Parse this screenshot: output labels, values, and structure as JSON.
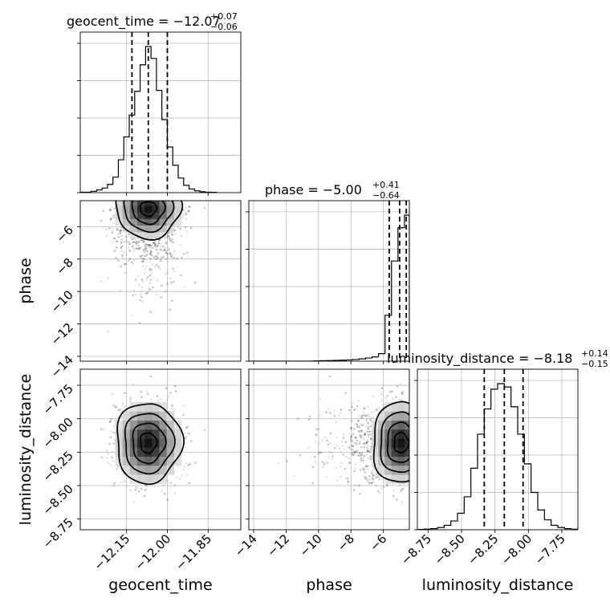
{
  "chart_data": {
    "type": "corner",
    "colors": {
      "lines": "#000000",
      "grid": "#b0b0b0",
      "points": "#bbbbbb",
      "density_dark": "#000000"
    },
    "grid": true,
    "params": [
      {
        "name": "geocent_time",
        "title_main": "geocent_time = −12.07",
        "title_plus": "+0.07",
        "title_minus": "−0.06",
        "range": [
          -12.32,
          -11.73
        ],
        "ticks": [
          -12.15,
          -12.0,
          -11.85
        ],
        "tick_labels": [
          "−12.15",
          "−12.00",
          "−11.85"
        ],
        "quantiles": [
          -12.13,
          -12.07,
          -12.0
        ],
        "hist_bins": [
          -12.32,
          -12.3,
          -12.28,
          -12.26,
          -12.24,
          -12.22,
          -12.2,
          -12.18,
          -12.16,
          -12.14,
          -12.12,
          -12.1,
          -12.08,
          -12.06,
          -12.04,
          -12.02,
          -12.0,
          -11.98,
          -11.96,
          -11.94,
          -11.92,
          -11.9,
          -11.88,
          -11.86,
          -11.84,
          -11.82
        ],
        "hist_counts": [
          0.5,
          0.5,
          1.5,
          3,
          5,
          9,
          17,
          36,
          61,
          85,
          111,
          140,
          160,
          147,
          112,
          80,
          50,
          30,
          16,
          8,
          4,
          2,
          1,
          0.5,
          0.3
        ]
      },
      {
        "name": "phase",
        "title_main": "phase = −5.00",
        "title_plus": "+0.41",
        "title_minus": "−0.64",
        "range": [
          -14.3,
          -4.4
        ],
        "ticks": [
          -14,
          -12,
          -10,
          -8,
          -6
        ],
        "tick_labels": [
          "−14",
          "−12",
          "−10",
          "−8",
          "−6"
        ],
        "quantiles": [
          -5.64,
          -5.0,
          -4.59
        ],
        "hist_bins": [
          -14.3,
          -13.9,
          -13.5,
          -13.1,
          -12.7,
          -12.3,
          -11.9,
          -11.5,
          -11.1,
          -10.7,
          -10.3,
          -9.9,
          -9.5,
          -9.1,
          -8.7,
          -8.3,
          -7.9,
          -7.5,
          -7.1,
          -6.7,
          -6.3,
          -5.9,
          -5.5,
          -5.1,
          -4.7,
          -4.4
        ],
        "hist_counts": [
          0,
          0,
          0,
          0,
          0,
          0,
          0,
          0,
          0,
          0,
          0.4,
          0.6,
          0.8,
          1,
          1.2,
          1.5,
          2,
          2.8,
          3.8,
          5.2,
          9,
          55,
          120,
          160,
          175
        ]
      },
      {
        "name": "luminosity_distance",
        "title_main": "luminosity_distance = −8.18",
        "title_plus": "+0.14",
        "title_minus": "−0.15",
        "range": [
          -8.83,
          -7.63
        ],
        "ticks": [
          -8.75,
          -8.5,
          -8.25,
          -8.0,
          -7.75
        ],
        "tick_labels": [
          "−8.75",
          "−8.50",
          "−8.25",
          "−8.00",
          "−7.75"
        ],
        "quantiles": [
          -8.33,
          -8.18,
          -8.04
        ],
        "hist_bins": [
          -8.83,
          -8.78,
          -8.73,
          -8.68,
          -8.63,
          -8.58,
          -8.53,
          -8.48,
          -8.43,
          -8.38,
          -8.33,
          -8.28,
          -8.23,
          -8.18,
          -8.13,
          -8.08,
          -8.03,
          -7.98,
          -7.93,
          -7.88,
          -7.83,
          -7.78,
          -7.73,
          -7.68,
          -7.63
        ],
        "hist_counts": [
          0.3,
          0.6,
          1,
          2,
          4,
          8,
          15,
          30,
          56,
          87,
          110,
          128,
          133,
          130,
          112,
          87,
          60,
          34,
          18,
          9,
          4,
          2,
          1,
          0.5
        ]
      }
    ],
    "pairs": [
      {
        "x": "geocent_time",
        "y": "phase",
        "center": [
          -12.07,
          -4.9
        ],
        "sd": [
          0.06,
          0.9
        ],
        "corr": 0.1
      },
      {
        "x": "geocent_time",
        "y": "luminosity_distance",
        "center": [
          -12.07,
          -8.18
        ],
        "sd": [
          0.06,
          0.15
        ],
        "corr": 0.0
      },
      {
        "x": "phase",
        "y": "luminosity_distance",
        "center": [
          -4.9,
          -8.18
        ],
        "sd": [
          0.9,
          0.15
        ],
        "corr": 0.0
      }
    ]
  }
}
